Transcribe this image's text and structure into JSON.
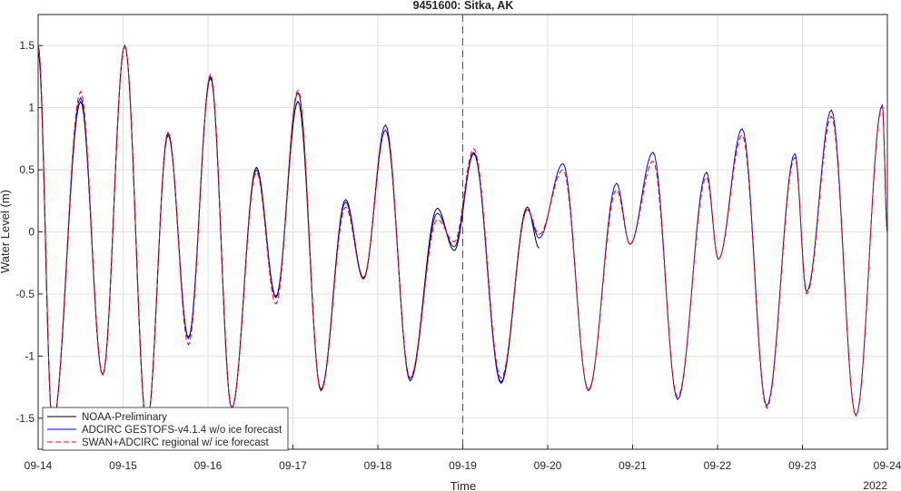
{
  "chart_data": {
    "type": "line",
    "title": "9451600: Sitka, AK",
    "xlabel": "Time",
    "ylabel": "Water Level (m)",
    "x_range": [
      "09-14",
      "09-24"
    ],
    "xlim_days": [
      14,
      24
    ],
    "ylim": [
      -1.75,
      1.75
    ],
    "x_ticks": [
      {
        "day": 14,
        "label": "09-14"
      },
      {
        "day": 15,
        "label": "09-15"
      },
      {
        "day": 16,
        "label": "09-16"
      },
      {
        "day": 17,
        "label": "09-17"
      },
      {
        "day": 18,
        "label": "09-18"
      },
      {
        "day": 19,
        "label": "09-19"
      },
      {
        "day": 20,
        "label": "09-20"
      },
      {
        "day": 21,
        "label": "09-21"
      },
      {
        "day": 22,
        "label": "09-22"
      },
      {
        "day": 23,
        "label": "09-23"
      },
      {
        "day": 24,
        "label": "09-24"
      }
    ],
    "x_secondary_label": "2022",
    "y_ticks": [
      {
        "value": 1.5,
        "label": "1.5"
      },
      {
        "value": 1,
        "label": "1"
      },
      {
        "value": 0.5,
        "label": "0.5"
      },
      {
        "value": 0,
        "label": "0"
      },
      {
        "value": -0.5,
        "label": "-0.5"
      },
      {
        "value": -1,
        "label": "-1"
      },
      {
        "value": -1.5,
        "label": "-1.5"
      }
    ],
    "grid": true,
    "forecast_start_day": 19,
    "legend_position": "bottom-left",
    "series": [
      {
        "name": "NOAA-Preliminary",
        "color": "#000000",
        "style": "solid",
        "extrema": [
          [
            14.0,
            1.45
          ],
          [
            14.17,
            -1.55
          ],
          [
            14.5,
            1.05
          ],
          [
            14.76,
            -1.15
          ],
          [
            15.02,
            1.5
          ],
          [
            15.28,
            -1.55
          ],
          [
            15.53,
            0.78
          ],
          [
            15.77,
            -0.85
          ],
          [
            16.03,
            1.24
          ],
          [
            16.28,
            -1.42
          ],
          [
            16.57,
            0.52
          ],
          [
            16.8,
            -0.52
          ],
          [
            17.06,
            1.05
          ],
          [
            17.33,
            -1.27
          ],
          [
            17.62,
            0.26
          ],
          [
            17.83,
            -0.37
          ],
          [
            18.09,
            0.82
          ],
          [
            18.38,
            -1.18
          ],
          [
            18.7,
            0.19
          ],
          [
            18.9,
            -0.15
          ],
          [
            19.13,
            0.63
          ],
          [
            19.45,
            -1.21
          ],
          [
            19.76,
            0.2
          ],
          [
            19.9,
            -0.13
          ]
        ]
      },
      {
        "name": "ADCIRC GESTOFS-v4.1.4 w/o ice forecast",
        "color": "#0000ff",
        "style": "solid",
        "extrema": [
          [
            14.0,
            1.5
          ],
          [
            14.17,
            -1.55
          ],
          [
            14.5,
            1.08
          ],
          [
            14.76,
            -1.15
          ],
          [
            15.02,
            1.5
          ],
          [
            15.28,
            -1.55
          ],
          [
            15.53,
            0.8
          ],
          [
            15.77,
            -0.86
          ],
          [
            16.03,
            1.25
          ],
          [
            16.28,
            -1.42
          ],
          [
            16.57,
            0.5
          ],
          [
            16.8,
            -0.53
          ],
          [
            17.06,
            1.12
          ],
          [
            17.33,
            -1.28
          ],
          [
            17.62,
            0.24
          ],
          [
            17.83,
            -0.38
          ],
          [
            18.09,
            0.86
          ],
          [
            18.38,
            -1.2
          ],
          [
            18.7,
            0.15
          ],
          [
            18.9,
            -0.12
          ],
          [
            19.13,
            0.64
          ],
          [
            19.45,
            -1.22
          ],
          [
            19.76,
            0.18
          ],
          [
            19.9,
            -0.05
          ],
          [
            20.18,
            0.55
          ],
          [
            20.48,
            -1.28
          ],
          [
            20.81,
            0.39
          ],
          [
            20.97,
            -0.1
          ],
          [
            21.24,
            0.64
          ],
          [
            21.53,
            -1.35
          ],
          [
            21.87,
            0.48
          ],
          [
            22.01,
            -0.22
          ],
          [
            22.29,
            0.83
          ],
          [
            22.58,
            -1.4
          ],
          [
            22.91,
            0.63
          ],
          [
            23.05,
            -0.48
          ],
          [
            23.34,
            0.98
          ],
          [
            23.63,
            -1.48
          ],
          [
            23.94,
            1.02
          ],
          [
            24.0,
            0.0
          ]
        ]
      },
      {
        "name": "SWAN+ADCIRC regional w/ ice forecast",
        "color": "#ff0000",
        "style": "dashed",
        "extrema": [
          [
            14.0,
            1.5
          ],
          [
            14.17,
            -1.55
          ],
          [
            14.5,
            1.13
          ],
          [
            14.76,
            -1.15
          ],
          [
            15.02,
            1.5
          ],
          [
            15.28,
            -1.55
          ],
          [
            15.53,
            0.8
          ],
          [
            15.77,
            -0.91
          ],
          [
            16.03,
            1.27
          ],
          [
            16.28,
            -1.42
          ],
          [
            16.57,
            0.48
          ],
          [
            16.8,
            -0.58
          ],
          [
            17.06,
            1.14
          ],
          [
            17.33,
            -1.28
          ],
          [
            17.62,
            0.2
          ],
          [
            17.83,
            -0.38
          ],
          [
            18.09,
            0.82
          ],
          [
            18.38,
            -1.18
          ],
          [
            18.7,
            0.1
          ],
          [
            18.9,
            -0.08
          ],
          [
            19.13,
            0.67
          ],
          [
            19.45,
            -1.18
          ],
          [
            19.76,
            0.18
          ],
          [
            19.9,
            -0.02
          ],
          [
            20.18,
            0.5
          ],
          [
            20.48,
            -1.27
          ],
          [
            20.81,
            0.34
          ],
          [
            20.97,
            -0.1
          ],
          [
            21.24,
            0.57
          ],
          [
            21.53,
            -1.33
          ],
          [
            21.87,
            0.44
          ],
          [
            22.01,
            -0.22
          ],
          [
            22.29,
            0.78
          ],
          [
            22.58,
            -1.42
          ],
          [
            22.91,
            0.6
          ],
          [
            23.05,
            -0.5
          ],
          [
            23.34,
            0.93
          ],
          [
            23.63,
            -1.48
          ],
          [
            23.94,
            1.01
          ],
          [
            24.0,
            0.0
          ]
        ]
      }
    ]
  }
}
